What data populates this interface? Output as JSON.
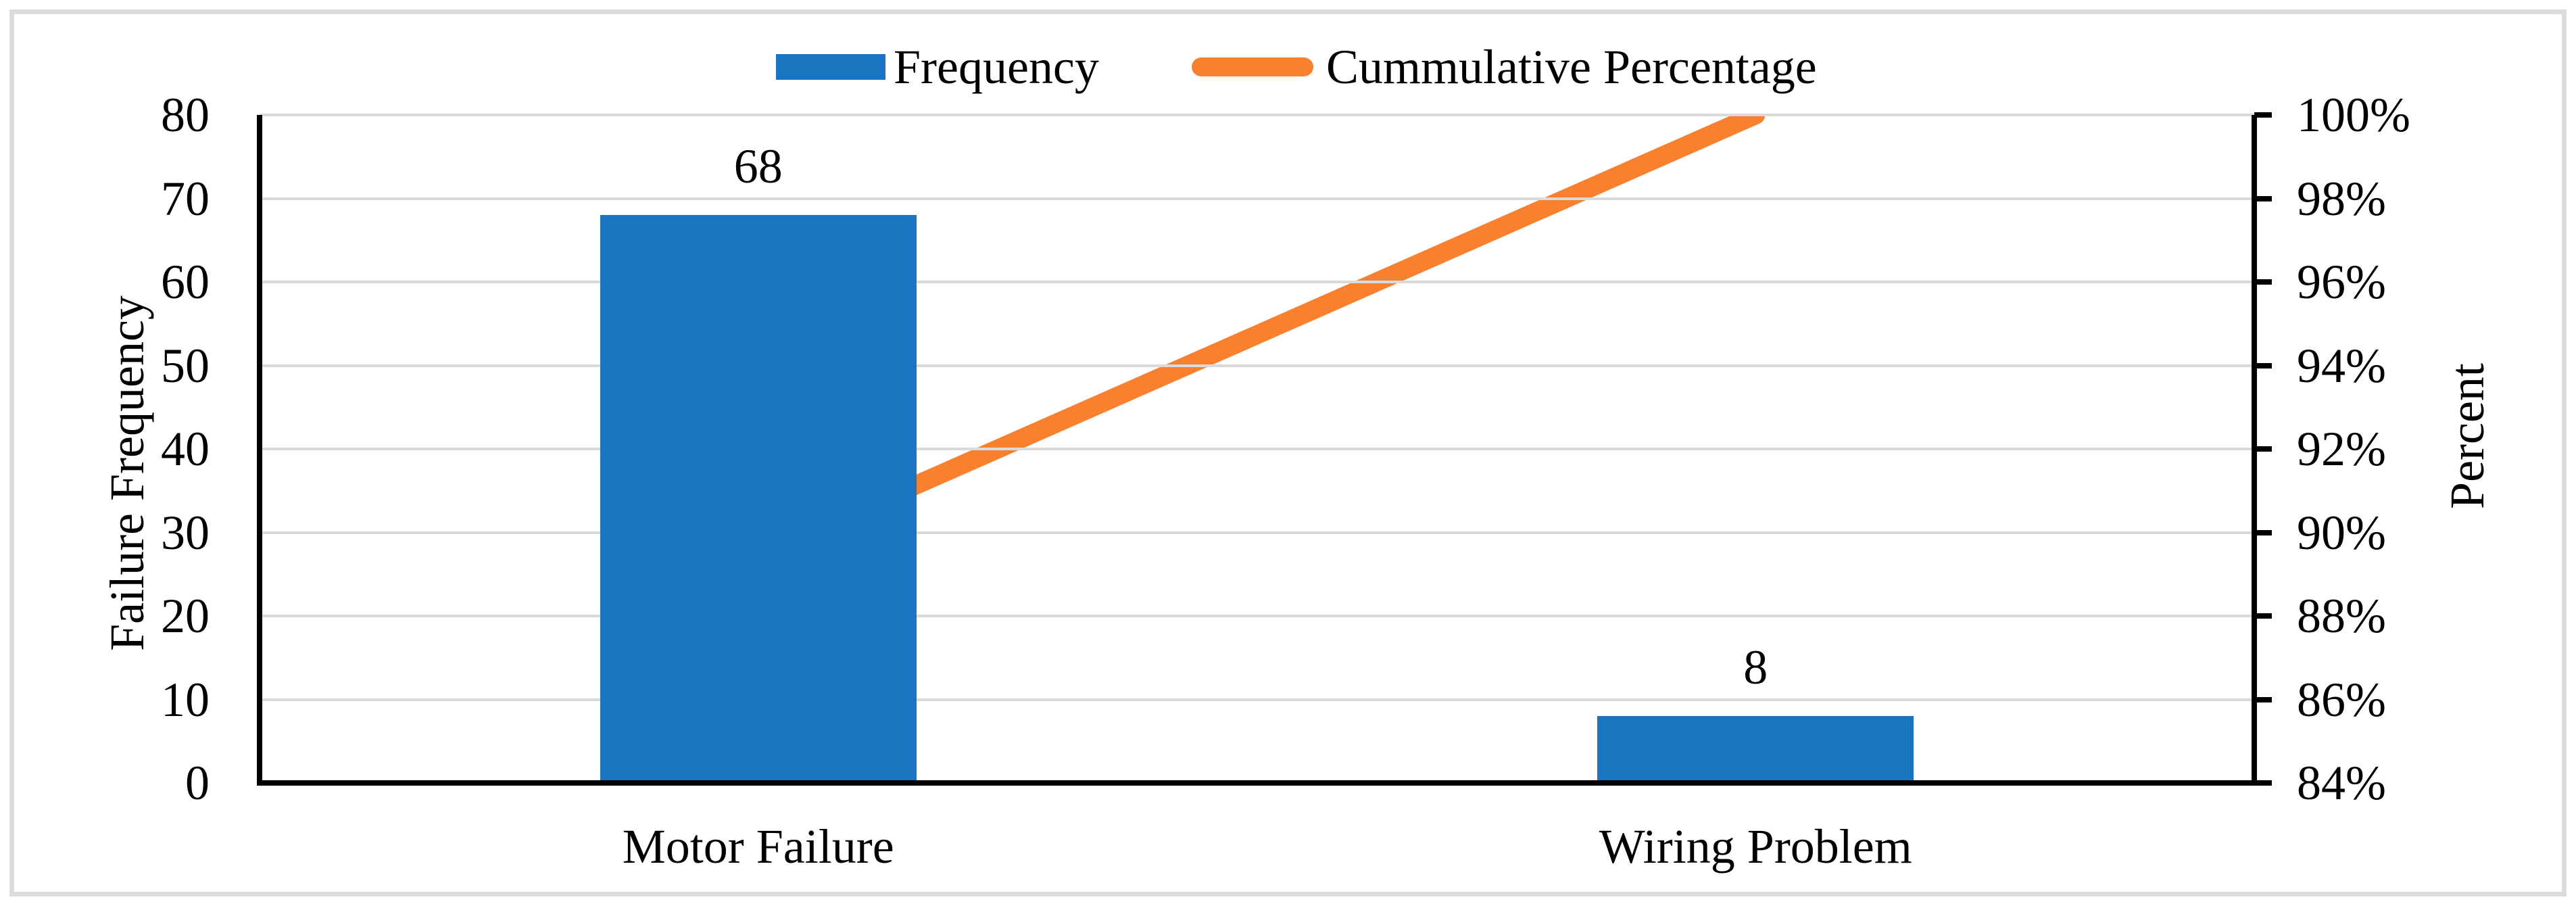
{
  "legend": {
    "items": [
      {
        "label": "Frequency",
        "type": "bar",
        "color": "#1B74BF"
      },
      {
        "label": "Cummulative Percentage",
        "type": "line",
        "color": "#F8802E"
      }
    ]
  },
  "chart_data": {
    "type": "bar",
    "subtype": "pareto-combo-bar-line",
    "categories": [
      "Motor Failure",
      "Wiring Problem"
    ],
    "series": [
      {
        "name": "Frequency",
        "type": "bar",
        "axis": "left",
        "values": [
          68,
          8
        ],
        "data_labels": [
          "68",
          "8"
        ],
        "color": "#1B74BF"
      },
      {
        "name": "Cummulative Percentage",
        "type": "line",
        "axis": "right",
        "values_percent": [
          89.47,
          100
        ],
        "color": "#F8802E"
      }
    ],
    "left_axis": {
      "title": "Failure Frequency",
      "min": 0,
      "max": 80,
      "step": 10,
      "tick_labels": [
        "0",
        "10",
        "20",
        "30",
        "40",
        "50",
        "60",
        "70",
        "80"
      ]
    },
    "right_axis": {
      "title": "Percent",
      "min": 84,
      "max": 100,
      "step": 2,
      "tick_labels": [
        "84%",
        "86%",
        "88%",
        "90%",
        "92%",
        "94%",
        "96%",
        "98%",
        "100%"
      ]
    },
    "grid": true,
    "gridline_color": "#DADADA",
    "axis_color": "#000000",
    "legend_position": "top-center",
    "background": "#FFFFFF",
    "frame_color": "#DBDBDB"
  }
}
